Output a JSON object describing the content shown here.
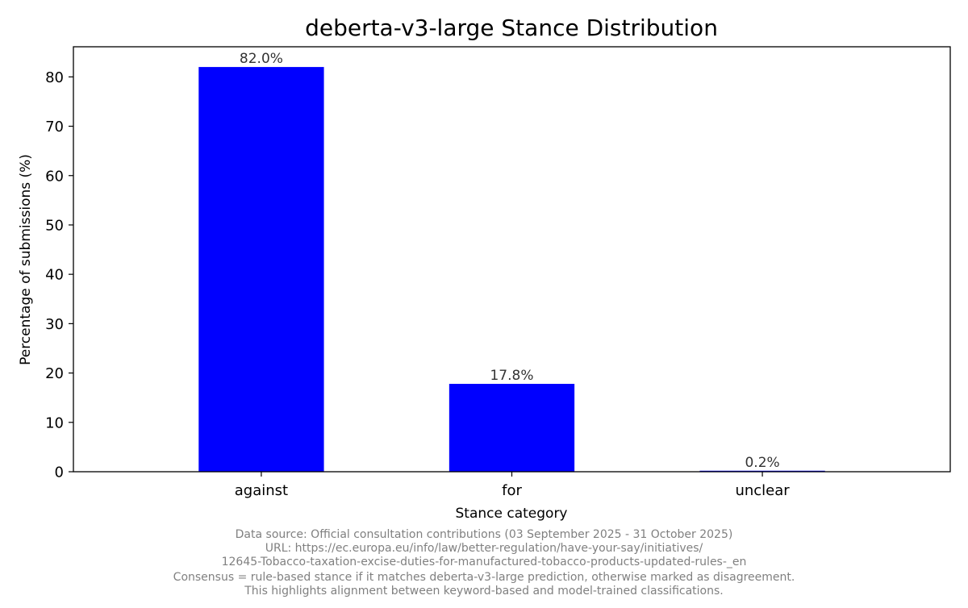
{
  "chart_data": {
    "type": "bar",
    "title": "deberta-v3-large Stance Distribution",
    "xlabel": "Stance category",
    "ylabel": "Percentage of submissions (%)",
    "categories": [
      "against",
      "for",
      "unclear"
    ],
    "values": [
      82.0,
      17.8,
      0.2
    ],
    "value_labels": [
      "82.0%",
      "17.8%",
      "0.2%"
    ],
    "ylim": [
      0,
      86.1
    ],
    "yticks": [
      0,
      10,
      20,
      30,
      40,
      50,
      60,
      70,
      80
    ],
    "bar_color": "#0000ff",
    "grid": false,
    "legend": "none"
  },
  "footnote": [
    "Data source: Official consultation contributions (03 September 2025 - 31 October 2025)",
    "URL: https://ec.europa.eu/info/law/better-regulation/have-your-say/initiatives/",
    "12645-Tobacco-taxation-excise-duties-for-manufactured-tobacco-products-updated-rules-_en",
    "Consensus = rule-based stance if it matches deberta-v3-large prediction, otherwise marked as disagreement.",
    "This highlights alignment between keyword-based and model-trained classifications."
  ]
}
